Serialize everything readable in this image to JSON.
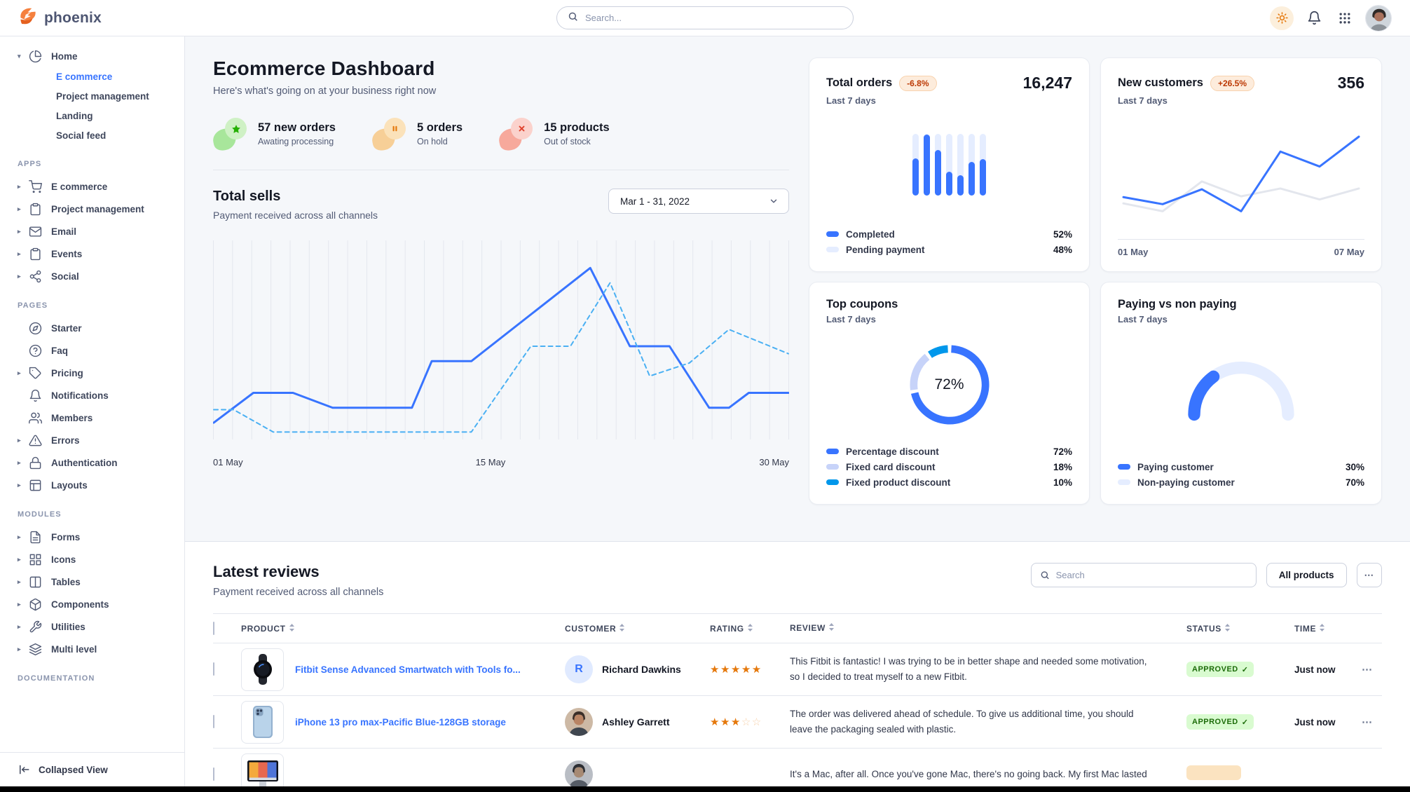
{
  "brand": {
    "name": "phoenix"
  },
  "navbar": {
    "search_placeholder": "Search..."
  },
  "icons": {
    "more": "⋯",
    "star_filled": "★",
    "star_empty": "☆",
    "check": "✓",
    "caret_right": "▸",
    "caret_down": "▾"
  },
  "sidebar": {
    "sections": [
      {
        "label": "",
        "items": [
          {
            "label": "Home",
            "icon": "pie-chart",
            "caret": "down",
            "children": [
              {
                "label": "E commerce",
                "active": true
              },
              {
                "label": "Project management",
                "active": false
              },
              {
                "label": "Landing",
                "active": false
              },
              {
                "label": "Social feed",
                "active": false
              }
            ]
          }
        ]
      },
      {
        "label": "APPS",
        "items": [
          {
            "label": "E commerce",
            "icon": "cart",
            "caret": "right"
          },
          {
            "label": "Project management",
            "icon": "clipboard",
            "caret": "right"
          },
          {
            "label": "Email",
            "icon": "mail",
            "caret": "right"
          },
          {
            "label": "Events",
            "icon": "clipboard",
            "caret": "right"
          },
          {
            "label": "Social",
            "icon": "share",
            "caret": "right"
          }
        ]
      },
      {
        "label": "PAGES",
        "items": [
          {
            "label": "Starter",
            "icon": "compass"
          },
          {
            "label": "Faq",
            "icon": "help-circle"
          },
          {
            "label": "Pricing",
            "icon": "tag",
            "caret": "right"
          },
          {
            "label": "Notifications",
            "icon": "bell"
          },
          {
            "label": "Members",
            "icon": "users"
          },
          {
            "label": "Errors",
            "icon": "alert-triangle",
            "caret": "right"
          },
          {
            "label": "Authentication",
            "icon": "lock",
            "caret": "right"
          },
          {
            "label": "Layouts",
            "icon": "layout",
            "caret": "right"
          }
        ]
      },
      {
        "label": "MODULES",
        "items": [
          {
            "label": "Forms",
            "icon": "file-text",
            "caret": "right"
          },
          {
            "label": "Icons",
            "icon": "grid",
            "caret": "right"
          },
          {
            "label": "Tables",
            "icon": "columns",
            "caret": "right"
          },
          {
            "label": "Components",
            "icon": "package",
            "caret": "right"
          },
          {
            "label": "Utilities",
            "icon": "wrench",
            "caret": "right"
          },
          {
            "label": "Multi level",
            "icon": "layers",
            "caret": "right"
          }
        ]
      },
      {
        "label": "DOCUMENTATION",
        "items": []
      }
    ],
    "footer": {
      "label": "Collapsed View",
      "icon": "collapse"
    }
  },
  "hero": {
    "title": "Ecommerce Dashboard",
    "subtitle": "Here's what's going on at your business right now",
    "stats": [
      {
        "value_label": "57 new orders",
        "sub": "Awating processing",
        "variant": "success",
        "icon": "star"
      },
      {
        "value_label": "5 orders",
        "sub": "On hold",
        "variant": "warning",
        "icon": "pause"
      },
      {
        "value_label": "15 products",
        "sub": "Out of stock",
        "variant": "danger",
        "icon": "x"
      }
    ]
  },
  "total_sells": {
    "title": "Total sells",
    "subtitle": "Payment received across all channels",
    "date_range": "Mar 1 - 31, 2022"
  },
  "cards": {
    "total_orders": {
      "title": "Total orders",
      "badge": "-6.8%",
      "value": "16,247",
      "period": "Last 7 days",
      "legend": [
        {
          "label": "Completed",
          "value": "52%",
          "color": "#3874ff"
        },
        {
          "label": "Pending payment",
          "value": "48%",
          "color": "#e5edff"
        }
      ]
    },
    "new_customers": {
      "title": "New customers",
      "badge": "+26.5%",
      "value": "356",
      "period": "Last 7 days",
      "xlabels": [
        "01 May",
        "07 May"
      ]
    },
    "top_coupons": {
      "title": "Top coupons",
      "period": "Last 7 days",
      "center_label": "72%",
      "legend": [
        {
          "label": "Percentage discount",
          "value": "72%",
          "color": "#3874ff"
        },
        {
          "label": "Fixed card discount",
          "value": "18%",
          "color": "#c7d3f9"
        },
        {
          "label": "Fixed product discount",
          "value": "10%",
          "color": "#0097eb"
        }
      ]
    },
    "paying": {
      "title": "Paying vs non paying",
      "period": "Last 7 days",
      "legend": [
        {
          "label": "Paying customer",
          "value": "30%",
          "color": "#3874ff"
        },
        {
          "label": "Non-paying customer",
          "value": "70%",
          "color": "#e5edff"
        }
      ]
    }
  },
  "chart_data": [
    {
      "id": "total-sells",
      "type": "line",
      "title": "Total sells",
      "xticks": [
        "01 May",
        "15 May",
        "30 May"
      ],
      "xrange": [
        1,
        30
      ],
      "yrange": [
        0,
        100
      ],
      "grid": "vertical-daily",
      "series": [
        {
          "name": "current",
          "color": "#3874ff",
          "style": "solid",
          "points": [
            [
              1,
              9
            ],
            [
              3,
              25
            ],
            [
              5,
              25
            ],
            [
              7,
              17
            ],
            [
              11,
              17
            ],
            [
              12,
              42
            ],
            [
              14,
              42
            ],
            [
              20,
              92
            ],
            [
              22,
              50
            ],
            [
              24,
              50
            ],
            [
              26,
              17
            ],
            [
              27,
              17
            ],
            [
              28,
              25
            ],
            [
              30,
              25
            ]
          ]
        },
        {
          "name": "previous",
          "color": "#4ab0f3",
          "style": "dashed",
          "points": [
            [
              1,
              16
            ],
            [
              2,
              16
            ],
            [
              4,
              4
            ],
            [
              14,
              4
            ],
            [
              17,
              50
            ],
            [
              19,
              50
            ],
            [
              21,
              84
            ],
            [
              23,
              34
            ],
            [
              25,
              41
            ],
            [
              27,
              59
            ],
            [
              30,
              46
            ]
          ]
        }
      ]
    },
    {
      "id": "total-orders-bars",
      "type": "bar",
      "values": [
        60,
        99,
        74,
        39,
        33,
        54,
        59
      ],
      "max": 100,
      "fill": "#3874ff",
      "track": "#e5edff"
    },
    {
      "id": "new-customers-line",
      "type": "line",
      "xticks": [
        "01 May",
        "07 May"
      ],
      "series": [
        {
          "name": "previous",
          "color": "#e3e6ed",
          "points": [
            [
              1,
              15
            ],
            [
              2,
              5
            ],
            [
              3,
              43
            ],
            [
              4,
              24
            ],
            [
              5,
              34
            ],
            [
              6,
              20
            ],
            [
              7,
              34
            ]
          ]
        },
        {
          "name": "current",
          "color": "#3874ff",
          "points": [
            [
              1,
              23
            ],
            [
              2,
              14
            ],
            [
              3,
              33
            ],
            [
              4,
              5
            ],
            [
              5,
              81
            ],
            [
              6,
              62
            ],
            [
              7,
              100
            ]
          ]
        }
      ]
    },
    {
      "id": "top-coupons-donut",
      "type": "donut",
      "center_label": "72%",
      "segments": [
        {
          "label": "Percentage discount",
          "value": 72,
          "color": "#3874ff"
        },
        {
          "label": "Fixed card discount",
          "value": 18,
          "color": "#c7d3f9"
        },
        {
          "label": "Fixed product discount",
          "value": 10,
          "color": "#0097eb"
        }
      ]
    },
    {
      "id": "paying-gauge",
      "type": "gauge",
      "segments": [
        {
          "label": "Paying customer",
          "value": 30,
          "color": "#3874ff"
        },
        {
          "label": "Non-paying customer",
          "value": 70,
          "color": "#e5edff"
        }
      ]
    }
  ],
  "reviews": {
    "title": "Latest reviews",
    "subtitle": "Payment received across all channels",
    "search_placeholder": "Search",
    "filter_label": "All products",
    "columns": [
      "PRODUCT",
      "CUSTOMER",
      "RATING",
      "REVIEW",
      "STATUS",
      "TIME"
    ],
    "rows": [
      {
        "product": "Fitbit Sense Advanced Smartwatch with Tools fo...",
        "product_image": "smartwatch",
        "customer": "Richard Dawkins",
        "avatar": {
          "type": "initial",
          "text": "R"
        },
        "rating": 5,
        "review": "This Fitbit is fantastic! I was trying to be in better shape and needed some motivation, so I decided to treat myself to a new Fitbit.",
        "status": {
          "label": "APPROVED",
          "variant": "success"
        },
        "time": "Just now"
      },
      {
        "product": "iPhone 13 pro max-Pacific Blue-128GB storage",
        "product_image": "iphone",
        "customer": "Ashley Garrett",
        "avatar": {
          "type": "photo",
          "palette": "tan"
        },
        "rating": 3,
        "review": "The order was delivered ahead of schedule. To give us additional time, you should leave the packaging sealed with plastic.",
        "status": {
          "label": "APPROVED",
          "variant": "success"
        },
        "time": "Just now"
      },
      {
        "product": "",
        "product_image": "imac",
        "customer": "",
        "avatar": {
          "type": "photo",
          "palette": "grey"
        },
        "rating": null,
        "review": "It's a Mac, after all. Once you've gone Mac, there's no going back. My first Mac lasted",
        "status": {
          "label": "",
          "variant": "warning"
        },
        "time": ""
      }
    ]
  }
}
